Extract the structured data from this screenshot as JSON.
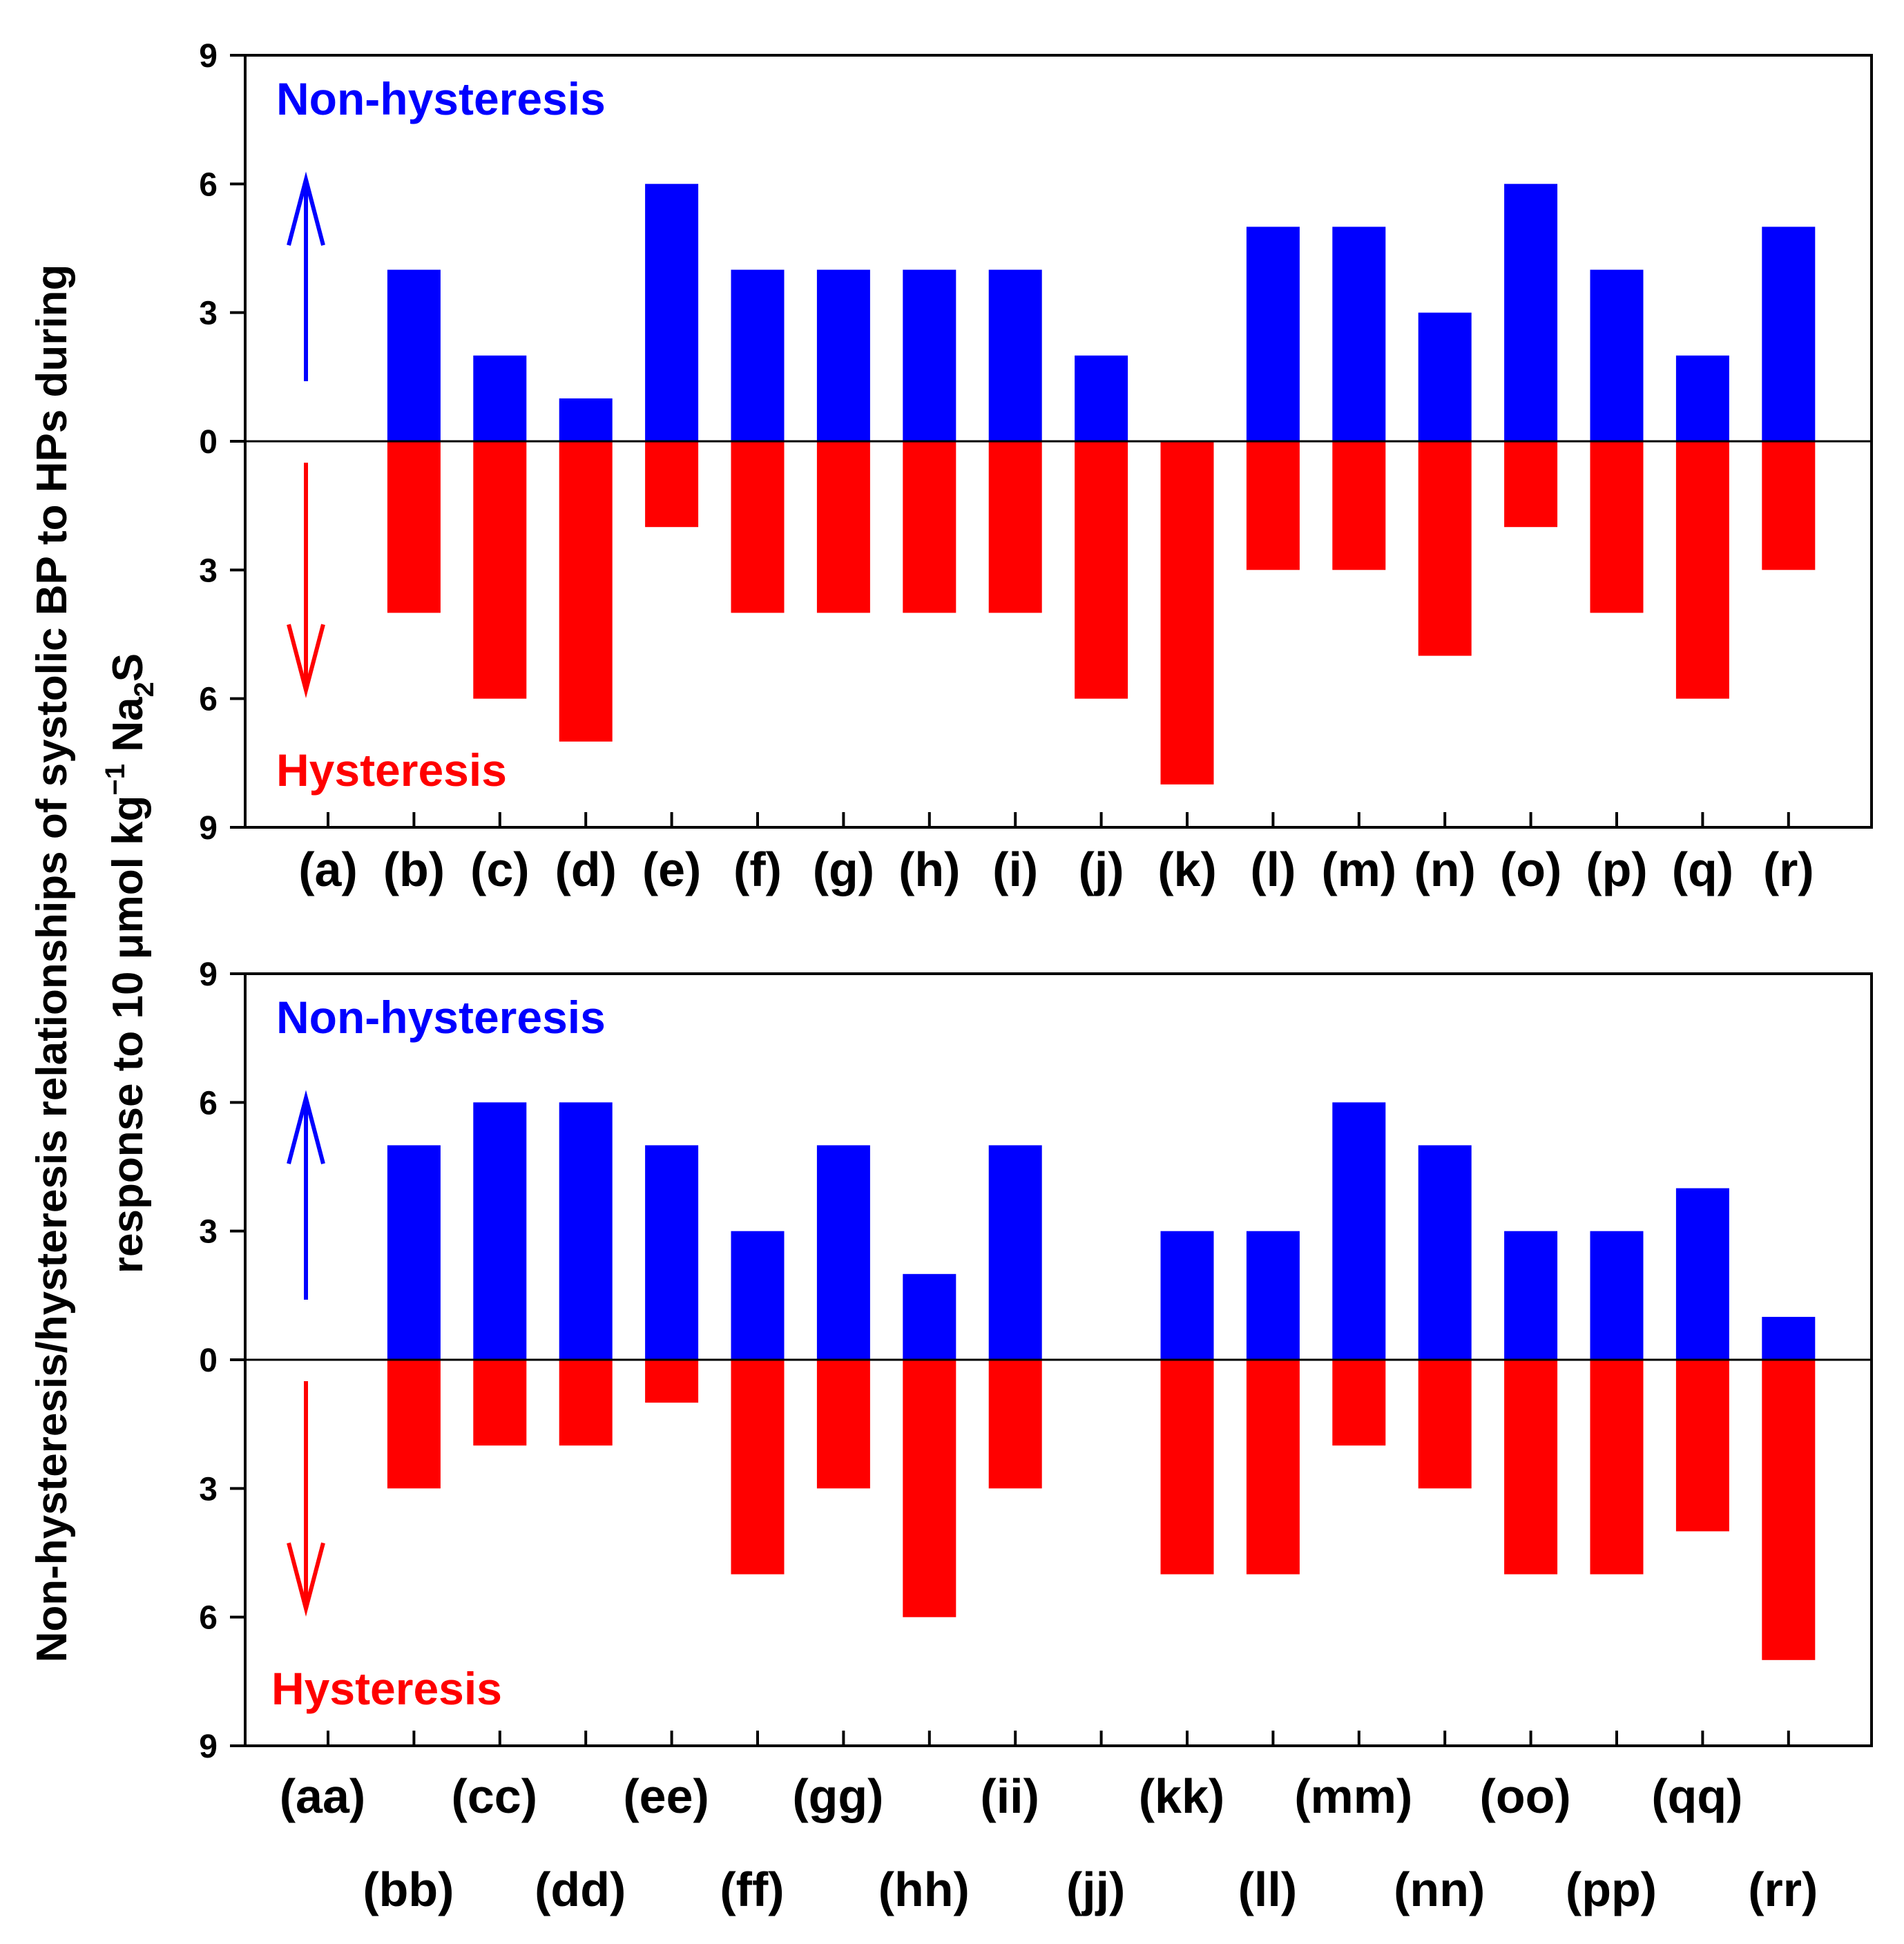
{
  "colors": {
    "non_hysteresis": "#0000FF",
    "hysteresis": "#FF0000",
    "axis": "#000000"
  },
  "ylabel": {
    "line1": "Non-hysteresis/hysteresis relationships of systolic BP to HPs during",
    "line2_prefix": "response to 10 μmol kg",
    "superscript": "−1",
    "line2_mid": " Na",
    "subscript": "2",
    "line2_suffix": "S"
  },
  "chart_data": [
    {
      "type": "bar",
      "panel": "top",
      "categories": [
        "(a)",
        "(b)",
        "(c)",
        "(d)",
        "(e)",
        "(f)",
        "(g)",
        "(h)",
        "(i)",
        "(j)",
        "(k)",
        "(l)",
        "(m)",
        "(n)",
        "(o)",
        "(p)",
        "(q)",
        "(r)"
      ],
      "series": [
        {
          "name": "Non-hysteresis",
          "direction": "up",
          "values": [
            0,
            4,
            2,
            1,
            6,
            4,
            4,
            4,
            4,
            2,
            0,
            5,
            5,
            3,
            6,
            4,
            2,
            5
          ]
        },
        {
          "name": "Hysteresis",
          "direction": "down",
          "values": [
            0,
            4,
            6,
            7,
            2,
            4,
            4,
            4,
            4,
            6,
            8,
            3,
            3,
            5,
            2,
            4,
            6,
            3
          ]
        }
      ],
      "yticks": [
        "9",
        "6",
        "3",
        "0",
        "3",
        "6",
        "9"
      ],
      "ylim": [
        -9,
        9
      ],
      "annotations": {
        "top": "Non-hysteresis",
        "bottom": "Hysteresis"
      }
    },
    {
      "type": "bar",
      "panel": "bottom",
      "categories": [
        "(aa)",
        "(bb)",
        "(cc)",
        "(dd)",
        "(ee)",
        "(ff)",
        "(gg)",
        "(hh)",
        "(ii)",
        "(jj)",
        "(kk)",
        "(ll)",
        "(mm)",
        "(nn)",
        "(oo)",
        "(pp)",
        "(qq)",
        "(rr)"
      ],
      "series": [
        {
          "name": "Non-hysteresis",
          "direction": "up",
          "values": [
            0,
            5,
            6,
            6,
            5,
            3,
            5,
            2,
            5,
            0,
            3,
            3,
            6,
            5,
            3,
            3,
            4,
            1
          ]
        },
        {
          "name": "Hysteresis",
          "direction": "down",
          "values": [
            0,
            3,
            2,
            2,
            1,
            5,
            3,
            6,
            3,
            0,
            5,
            5,
            2,
            3,
            5,
            5,
            4,
            7
          ]
        }
      ],
      "yticks": [
        "9",
        "6",
        "3",
        "0",
        "3",
        "6",
        "9"
      ],
      "ylim": [
        -9,
        9
      ],
      "annotations": {
        "top": "Non-hysteresis",
        "bottom": "Hysteresis"
      }
    }
  ]
}
